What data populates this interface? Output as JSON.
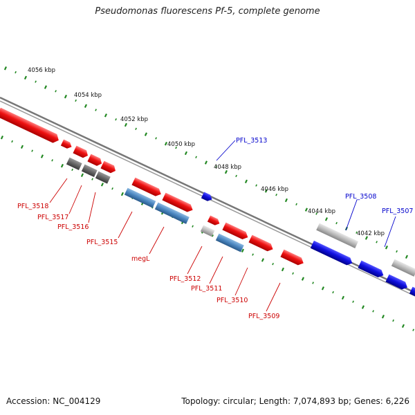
{
  "title": "Pseudomonas fluorescens Pf-5, complete genome",
  "footer": {
    "accession": "Accession: NC_004129",
    "info": "Topology: circular; Length: 7,074,893 bp; Genes: 6,226"
  },
  "colors": {
    "forward_cds": "#1010e0",
    "reverse_cds": "#ee1111",
    "reverse_gray": "#666666",
    "reverse_steel": "#4a86c0",
    "reverse_lightgray": "#bbbbbb",
    "forward_lightgray": "#bbbbbb",
    "tick_dot": "#228822",
    "backbone": "#888888",
    "label_blue": "#0000cc",
    "label_red": "#cc0000"
  },
  "ticks": [
    "4056 kbp",
    "4054 kbp",
    "4052 kbp",
    "4050 kbp",
    "4048 kbp",
    "4046 kbp",
    "4044 kbp",
    "4042 kbp"
  ],
  "gene_labels": {
    "forward": [
      "PFL_3513",
      "PFL_3508",
      "PFL_3507"
    ],
    "reverse": [
      "PFL_3518",
      "PFL_3517",
      "PFL_3516",
      "PFL_3515",
      "megL",
      "PFL_3512",
      "PFL_3511",
      "PFL_3510",
      "PFL_3509"
    ]
  }
}
